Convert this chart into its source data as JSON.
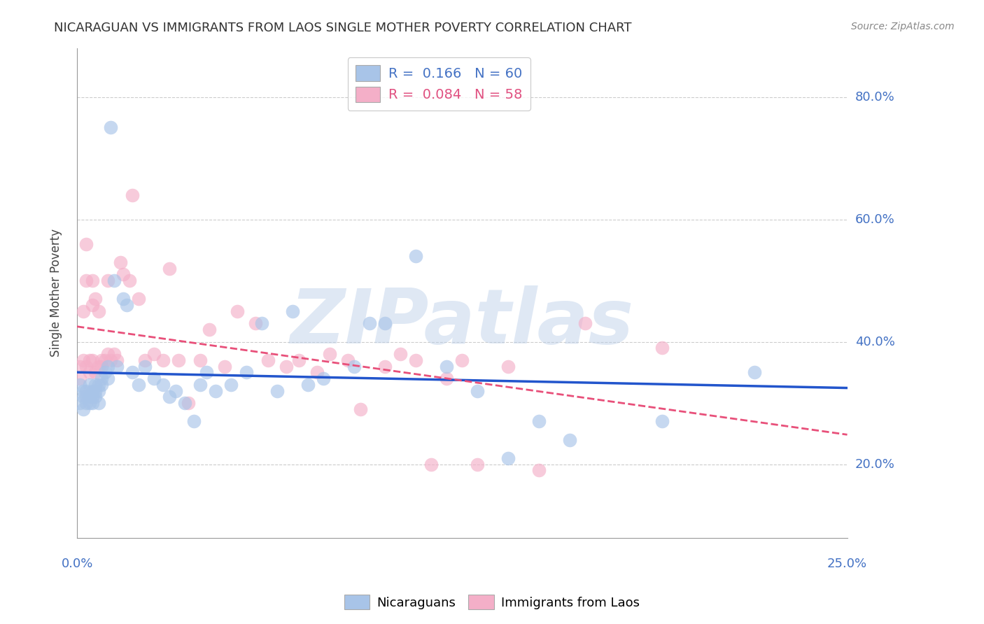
{
  "title": "NICARAGUAN VS IMMIGRANTS FROM LAOS SINGLE MOTHER POVERTY CORRELATION CHART",
  "source": "Source: ZipAtlas.com",
  "ylabel": "Single Mother Poverty",
  "yticks": [
    0.2,
    0.4,
    0.6,
    0.8
  ],
  "ytick_labels": [
    "20.0%",
    "40.0%",
    "60.0%",
    "80.0%"
  ],
  "xlim": [
    0.0,
    0.25
  ],
  "ylim": [
    0.08,
    0.88
  ],
  "blue_R": 0.166,
  "blue_N": 60,
  "pink_R": 0.084,
  "pink_N": 58,
  "blue_color": "#a8c4e8",
  "pink_color": "#f4afc8",
  "blue_line_color": "#2255cc",
  "pink_line_color": "#e8507a",
  "watermark": "ZIPatlas",
  "legend_labels": [
    "Nicaraguans",
    "Immigrants from Laos"
  ],
  "blue_x": [
    0.001,
    0.001,
    0.002,
    0.002,
    0.002,
    0.003,
    0.003,
    0.003,
    0.004,
    0.004,
    0.004,
    0.005,
    0.005,
    0.005,
    0.006,
    0.006,
    0.006,
    0.007,
    0.007,
    0.007,
    0.008,
    0.008,
    0.009,
    0.01,
    0.01,
    0.011,
    0.012,
    0.013,
    0.015,
    0.016,
    0.018,
    0.02,
    0.022,
    0.025,
    0.028,
    0.03,
    0.032,
    0.035,
    0.038,
    0.04,
    0.042,
    0.045,
    0.05,
    0.055,
    0.06,
    0.065,
    0.07,
    0.075,
    0.08,
    0.09,
    0.095,
    0.1,
    0.11,
    0.12,
    0.13,
    0.14,
    0.15,
    0.16,
    0.19,
    0.22
  ],
  "blue_y": [
    0.33,
    0.3,
    0.31,
    0.29,
    0.32,
    0.3,
    0.31,
    0.32,
    0.3,
    0.31,
    0.33,
    0.32,
    0.3,
    0.31,
    0.33,
    0.32,
    0.31,
    0.33,
    0.32,
    0.3,
    0.34,
    0.33,
    0.35,
    0.36,
    0.34,
    0.75,
    0.5,
    0.36,
    0.47,
    0.46,
    0.35,
    0.33,
    0.36,
    0.34,
    0.33,
    0.31,
    0.32,
    0.3,
    0.27,
    0.33,
    0.35,
    0.32,
    0.33,
    0.35,
    0.43,
    0.32,
    0.45,
    0.33,
    0.34,
    0.36,
    0.43,
    0.43,
    0.54,
    0.36,
    0.32,
    0.21,
    0.27,
    0.24,
    0.27,
    0.35
  ],
  "pink_x": [
    0.001,
    0.001,
    0.002,
    0.002,
    0.003,
    0.003,
    0.003,
    0.004,
    0.004,
    0.005,
    0.005,
    0.005,
    0.006,
    0.006,
    0.007,
    0.007,
    0.008,
    0.008,
    0.009,
    0.01,
    0.01,
    0.011,
    0.012,
    0.013,
    0.014,
    0.015,
    0.017,
    0.018,
    0.02,
    0.022,
    0.025,
    0.028,
    0.03,
    0.033,
    0.036,
    0.04,
    0.043,
    0.048,
    0.052,
    0.058,
    0.062,
    0.068,
    0.072,
    0.078,
    0.082,
    0.088,
    0.092,
    0.1,
    0.105,
    0.11,
    0.115,
    0.12,
    0.125,
    0.13,
    0.14,
    0.15,
    0.165,
    0.19
  ],
  "pink_y": [
    0.34,
    0.36,
    0.37,
    0.45,
    0.36,
    0.5,
    0.56,
    0.35,
    0.37,
    0.37,
    0.5,
    0.46,
    0.35,
    0.47,
    0.36,
    0.45,
    0.37,
    0.36,
    0.37,
    0.38,
    0.5,
    0.37,
    0.38,
    0.37,
    0.53,
    0.51,
    0.5,
    0.64,
    0.47,
    0.37,
    0.38,
    0.37,
    0.52,
    0.37,
    0.3,
    0.37,
    0.42,
    0.36,
    0.45,
    0.43,
    0.37,
    0.36,
    0.37,
    0.35,
    0.38,
    0.37,
    0.29,
    0.36,
    0.38,
    0.37,
    0.2,
    0.34,
    0.37,
    0.2,
    0.36,
    0.19,
    0.43,
    0.39
  ]
}
